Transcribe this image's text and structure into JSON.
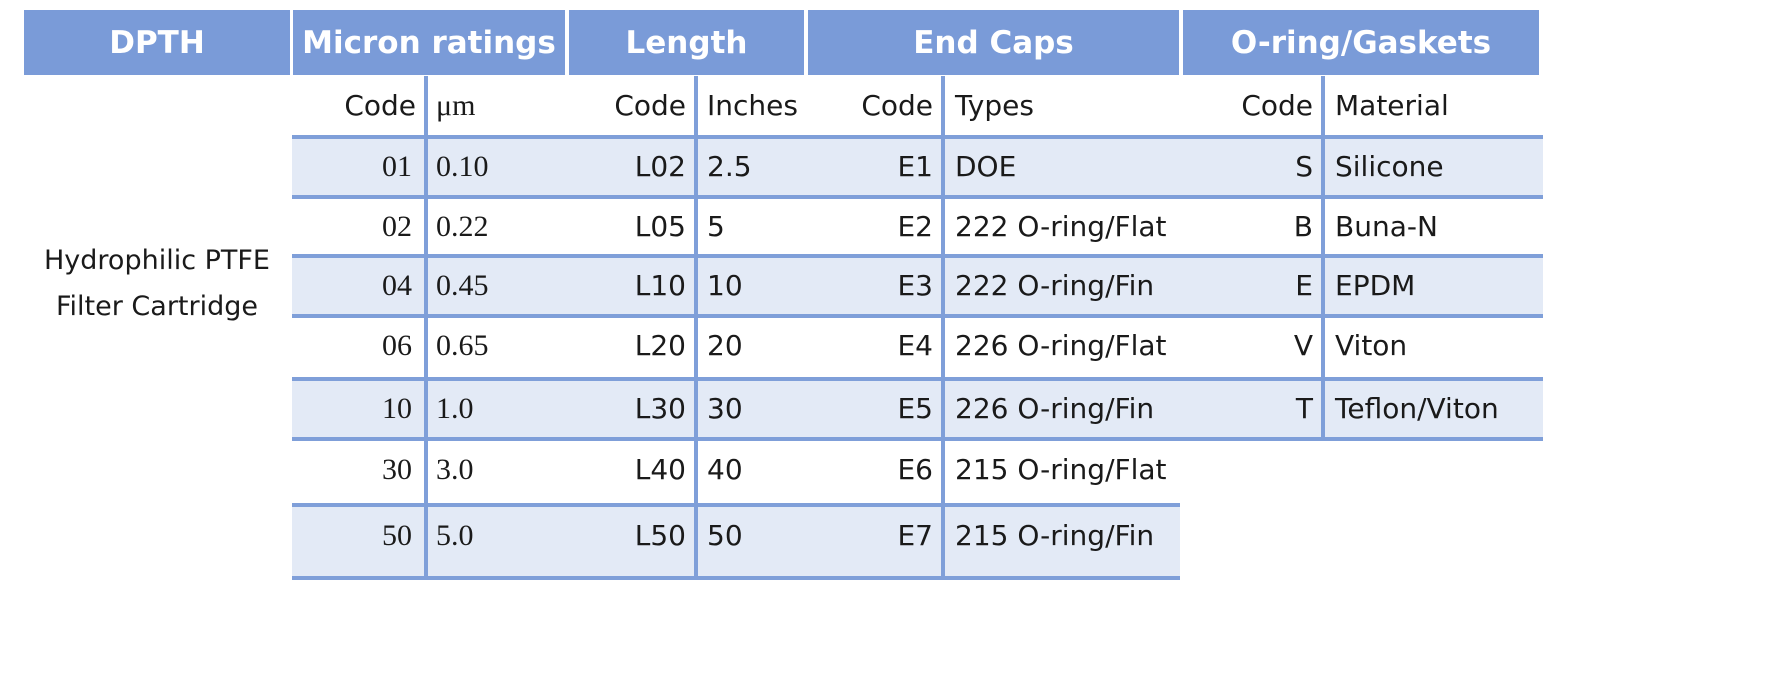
{
  "headers": {
    "dpth": "DPTH",
    "micron": "Micron ratings",
    "length": "Length",
    "endcaps": "End Caps",
    "oring": "O-ring/Gaskets"
  },
  "subheaders": {
    "micron_code": "Code",
    "micron_unit": "μm",
    "length_code": "Code",
    "length_unit": "Inches",
    "endcaps_code": "Code",
    "endcaps_types": "Types",
    "oring_code": "Code",
    "oring_material": "Material"
  },
  "product": {
    "line1": "Hydrophilic PTFE",
    "line2": "Filter Cartridge"
  },
  "micron": [
    {
      "code": "01",
      "value": "0.10"
    },
    {
      "code": "02",
      "value": "0.22"
    },
    {
      "code": "04",
      "value": "0.45"
    },
    {
      "code": "06",
      "value": "0.65"
    },
    {
      "code": "10",
      "value": "1.0"
    },
    {
      "code": "30",
      "value": "3.0"
    },
    {
      "code": "50",
      "value": "5.0"
    }
  ],
  "length": [
    {
      "code": "L02",
      "value": "2.5"
    },
    {
      "code": "L05",
      "value": "5"
    },
    {
      "code": "L10",
      "value": "10"
    },
    {
      "code": "L20",
      "value": "20"
    },
    {
      "code": "L30",
      "value": "30"
    },
    {
      "code": "L40",
      "value": "40"
    },
    {
      "code": "L50",
      "value": "50"
    }
  ],
  "endcaps": [
    {
      "code": "E1",
      "value": "DOE"
    },
    {
      "code": "E2",
      "value": "222 O-ring/Flat"
    },
    {
      "code": "E3",
      "value": "222 O-ring/Fin"
    },
    {
      "code": "E4",
      "value": "226 O-ring/Flat"
    },
    {
      "code": "E5",
      "value": "226 O-ring/Fin"
    },
    {
      "code": "E6",
      "value": "215 O-ring/Flat"
    },
    {
      "code": "E7",
      "value": "215 O-ring/Fin"
    }
  ],
  "oring": [
    {
      "code": "S",
      "value": "Silicone"
    },
    {
      "code": "B",
      "value": "Buna-N"
    },
    {
      "code": "E",
      "value": "EPDM"
    },
    {
      "code": "V",
      "value": "Viton"
    },
    {
      "code": "T",
      "value": "Teflon/Viton"
    }
  ],
  "colors": {
    "header_bg": "#7a9bd8",
    "header_text": "#ffffff",
    "stripe": "#e3eaf6",
    "rule": "#7f9fd9"
  }
}
